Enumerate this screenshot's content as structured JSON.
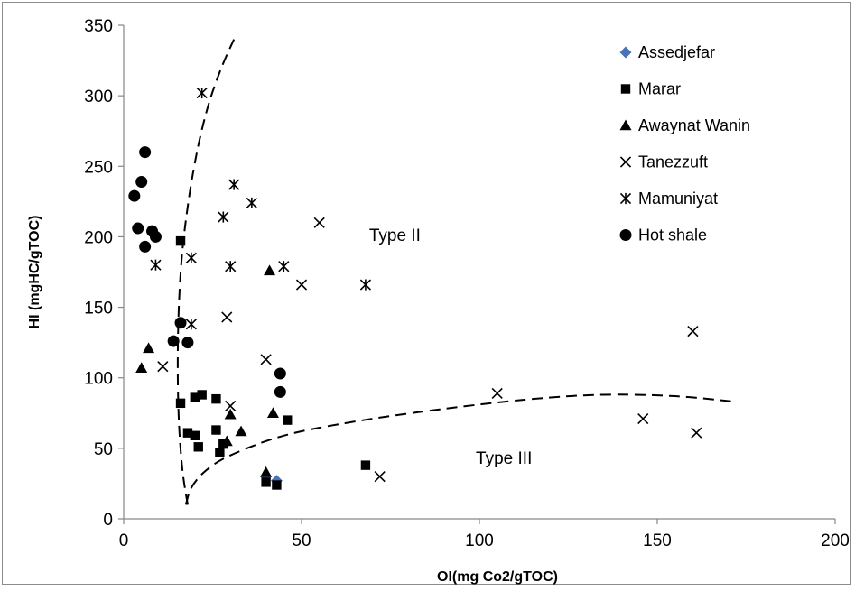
{
  "chart_data": {
    "type": "scatter",
    "title": "",
    "xlabel": "OI(mg Co2/gTOC)",
    "ylabel": "HI (mgHC/gTOC)",
    "xlim": [
      0,
      200
    ],
    "ylim": [
      0,
      350
    ],
    "x_ticks": [
      "0",
      "50",
      "100",
      "150",
      "200"
    ],
    "y_ticks": [
      "0",
      "50",
      "100",
      "150",
      "200",
      "250",
      "300",
      "350"
    ],
    "grid": false,
    "legend_position": "top-right",
    "series": [
      {
        "name": "Assedjefar",
        "marker": "diamond",
        "color": "#4a73b5",
        "points": [
          [
            40,
            30
          ],
          [
            43,
            27
          ]
        ]
      },
      {
        "name": "Marar",
        "marker": "square",
        "color": "#000000",
        "points": [
          [
            16,
            197
          ],
          [
            16,
            82
          ],
          [
            20,
            86
          ],
          [
            22,
            88
          ],
          [
            26,
            85
          ],
          [
            18,
            61
          ],
          [
            20,
            59
          ],
          [
            21,
            51
          ],
          [
            26,
            63
          ],
          [
            27,
            47
          ],
          [
            28,
            53
          ],
          [
            46,
            70
          ],
          [
            68,
            38
          ],
          [
            40,
            26
          ],
          [
            43,
            24
          ]
        ]
      },
      {
        "name": "Awaynat Wanin",
        "marker": "triangle",
        "color": "#000000",
        "points": [
          [
            7,
            121
          ],
          [
            5,
            107
          ],
          [
            30,
            74
          ],
          [
            33,
            62
          ],
          [
            29,
            55
          ],
          [
            42,
            75
          ],
          [
            41,
            176
          ],
          [
            40,
            33
          ]
        ]
      },
      {
        "name": "Tanezzuft",
        "marker": "x",
        "color": "#000000",
        "points": [
          [
            11,
            108
          ],
          [
            29,
            143
          ],
          [
            40,
            113
          ],
          [
            50,
            166
          ],
          [
            55,
            210
          ],
          [
            30,
            80
          ],
          [
            72,
            30
          ],
          [
            105,
            89
          ],
          [
            146,
            71
          ],
          [
            160,
            133
          ],
          [
            161,
            61
          ]
        ]
      },
      {
        "name": "Mamuniyat",
        "marker": "asterisk",
        "color": "#000000",
        "points": [
          [
            22,
            302
          ],
          [
            31,
            237
          ],
          [
            36,
            224
          ],
          [
            28,
            214
          ],
          [
            9,
            180
          ],
          [
            19,
            185
          ],
          [
            30,
            179
          ],
          [
            45,
            179
          ],
          [
            68,
            166
          ],
          [
            19,
            138
          ]
        ]
      },
      {
        "name": "Hot shale",
        "marker": "circle",
        "color": "#000000",
        "points": [
          [
            6,
            260
          ],
          [
            5,
            239
          ],
          [
            3,
            229
          ],
          [
            4,
            206
          ],
          [
            8,
            204
          ],
          [
            9,
            200
          ],
          [
            6,
            193
          ],
          [
            16,
            139
          ],
          [
            14,
            126
          ],
          [
            18,
            125
          ],
          [
            44,
            103
          ],
          [
            44,
            90
          ]
        ]
      }
    ],
    "curves": [
      {
        "name": "type-ii-boundary",
        "style": "dashed",
        "points": [
          [
            18,
            10
          ],
          [
            16.5,
            35
          ],
          [
            15.5,
            70
          ],
          [
            15.2,
            110
          ],
          [
            15.5,
            150
          ],
          [
            16.5,
            190
          ],
          [
            18.5,
            230
          ],
          [
            21,
            265
          ],
          [
            24,
            295
          ],
          [
            27.5,
            320
          ],
          [
            31,
            340
          ]
        ]
      },
      {
        "name": "type-iii-boundary",
        "style": "dashed",
        "points": [
          [
            17.5,
            10
          ],
          [
            19,
            22
          ],
          [
            23,
            34
          ],
          [
            30,
            45
          ],
          [
            45,
            59
          ],
          [
            65,
            69
          ],
          [
            90,
            78
          ],
          [
            115,
            85
          ],
          [
            135,
            88
          ],
          [
            155,
            87
          ],
          [
            172,
            83
          ]
        ]
      }
    ],
    "annotations": [
      {
        "text": "Type II",
        "x": 69,
        "y": 197
      },
      {
        "text": "Type III",
        "x": 99,
        "y": 39
      }
    ]
  }
}
